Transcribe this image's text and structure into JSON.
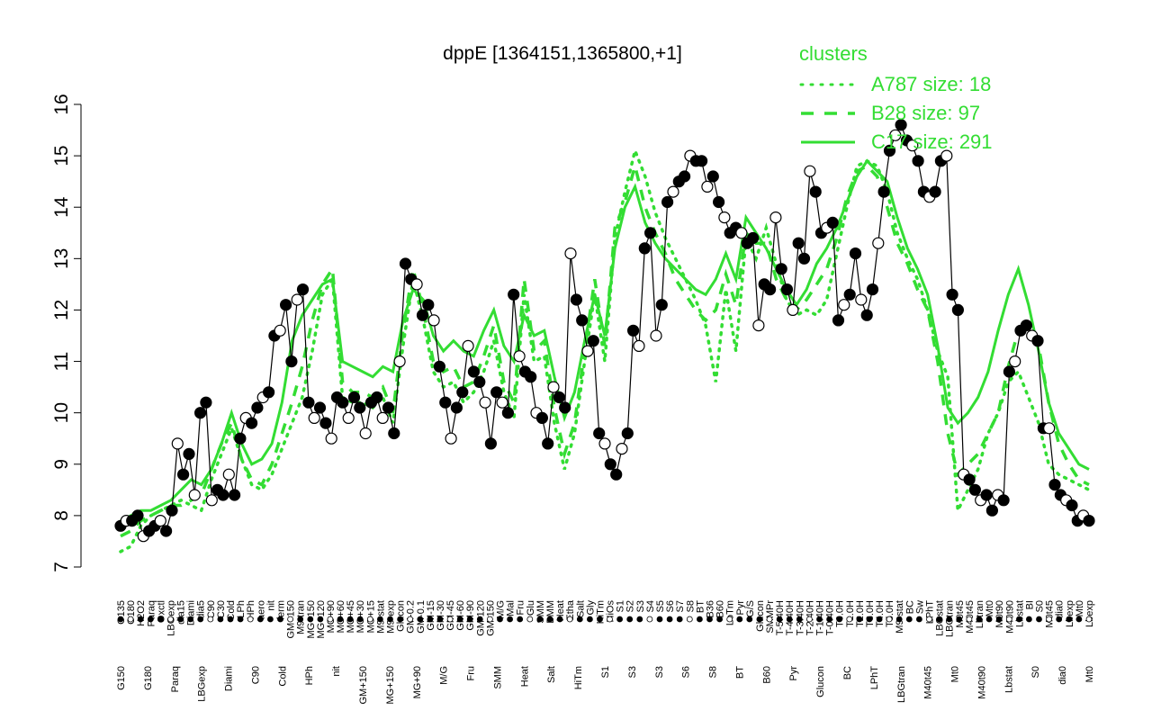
{
  "chart_data": {
    "type": "line",
    "title": "dppE [1364151,1365800,+1]",
    "xlabel": "",
    "ylabel": "",
    "ylim": [
      7,
      16
    ],
    "yticks": [
      7,
      8,
      9,
      10,
      11,
      12,
      13,
      14,
      15,
      16
    ],
    "legend": {
      "title": "clusters",
      "placement": "top-right",
      "entries": [
        "A787 size: 18",
        "B28 size: 97",
        "C17 size: 291"
      ],
      "line_styles": [
        "dotted",
        "dashed",
        "solid"
      ]
    },
    "x_tick_labels_top": [
      "G135",
      "G180",
      "H2O2",
      "Paraq",
      "Oxctl",
      "LBGexp",
      "dia15",
      "Diami",
      "dia5",
      "C90",
      "C30",
      "Cold",
      "LPh",
      "HPh",
      "aero",
      "nit",
      "ferm",
      "GM+150",
      "M9-tran",
      "MG+150",
      "MG+120",
      "MG+90",
      "MG+60",
      "MG+45",
      "MG+30",
      "MG+15",
      "M9-stat",
      "M9-exp",
      "Glucon",
      "GM-0.2",
      "GM-0.1",
      "GM-15",
      "GM-30",
      "GM-45",
      "GM-60",
      "GM-90",
      "GM-120",
      "GM-150",
      "M/G",
      "Mal",
      "Fru",
      "Glu",
      "SMM",
      "BMM",
      "Heat",
      "Etha",
      "Salt",
      "Gly",
      "HiTm",
      "HiOs",
      "S1",
      "S2",
      "S3",
      "S4",
      "S5",
      "S6",
      "S7",
      "S8",
      "BT",
      "B36",
      "B60",
      "LoTm",
      "Pyr",
      "G/S",
      "Glucon",
      "SMMPr",
      "T-5.40H",
      "T-4.40H",
      "T-3.40H",
      "T-2.40H",
      "T-1.40H",
      "T-0.40H",
      "T0.0H",
      "T1.0H",
      "T2.0H",
      "T3.0H",
      "T4.0H",
      "T5.0H",
      "M9-stat",
      "BC",
      "Sw",
      "LPhT",
      "LBGstat",
      "LBGtran",
      "M0t45",
      "M40t45",
      "Lbtran",
      "Mt0",
      "M0t90",
      "M40t90",
      "Lbstat",
      "BI",
      "S0",
      "M0t45",
      "dia0",
      "Lbexp",
      "Mt0",
      "Lbexp"
    ],
    "x_tick_labels_bottom": [
      "G150",
      "G180",
      "Paraq",
      "LBGexp",
      "Diami",
      "C90",
      "Cold",
      "HPh",
      "nit",
      "GM+150",
      "MG+150",
      "MG+90",
      "M/G",
      "Fru",
      "SMM",
      "Heat",
      "Salt",
      "HiTm",
      "S1",
      "S3",
      "S3",
      "S6",
      "S8",
      "BT",
      "B60",
      "Pyr",
      "Glucon",
      "BC",
      "LPhT",
      "LBGtran",
      "M40t45",
      "Mt0",
      "M40t90",
      "Lbstat",
      "S0",
      "dia0",
      "Mt0"
    ],
    "series": [
      {
        "style": "dotted",
        "values": [
          7.3,
          7.4,
          7.8,
          8.0,
          8.1,
          8.2,
          8.3,
          8.2,
          8.1,
          8.7,
          9.2,
          9.7,
          9.1,
          8.6,
          8.5,
          8.8,
          9.3,
          9.8,
          10.3,
          11.2,
          12.3,
          12.6,
          10.3,
          10.2,
          10.2,
          10.1,
          10.3,
          9.8,
          11.3,
          12.6,
          11.8,
          10.8,
          10.5,
          10.6,
          10.2,
          10.4,
          10.8,
          11.4,
          10.4,
          9.9,
          12.3,
          11.0,
          11.1,
          9.8,
          8.9,
          9.6,
          11.0,
          12.3,
          11.0,
          13.4,
          14.3,
          15.1,
          14.6,
          13.9,
          13.4,
          13.0,
          12.6,
          12.2,
          11.7,
          10.6,
          12.4,
          11.2,
          13.4,
          13.0,
          13.6,
          12.9,
          12.2,
          11.9,
          12.0,
          11.9,
          12.2,
          13.1,
          14.0,
          14.8,
          14.9,
          14.8,
          14.3,
          13.5,
          13.0,
          12.6,
          12.0,
          11.2,
          10.7,
          8.1,
          8.5,
          8.9,
          9.6,
          10.0,
          10.6,
          10.8,
          10.3,
          9.8,
          9.0,
          8.8,
          8.7,
          8.6,
          8.5
        ]
      },
      {
        "style": "dashed",
        "values": [
          7.6,
          7.7,
          7.9,
          8.0,
          8.1,
          8.2,
          8.2,
          8.3,
          8.4,
          8.9,
          9.4,
          9.8,
          9.1,
          8.7,
          8.6,
          9.0,
          9.6,
          10.2,
          10.9,
          11.8,
          12.5,
          12.8,
          10.6,
          10.4,
          10.4,
          10.3,
          10.5,
          10.0,
          11.6,
          12.8,
          12.0,
          11.0,
          10.8,
          10.9,
          10.5,
          10.6,
          11.1,
          11.7,
          10.6,
          10.2,
          12.6,
          11.2,
          11.4,
          10.1,
          9.2,
          9.8,
          11.2,
          12.6,
          11.3,
          13.6,
          14.1,
          14.8,
          14.0,
          13.5,
          13.1,
          12.6,
          12.3,
          12.0,
          11.8,
          12.0,
          12.7,
          12.1,
          13.5,
          13.3,
          13.3,
          12.6,
          12.2,
          12.0,
          12.2,
          12.5,
          12.8,
          13.4,
          14.2,
          14.7,
          14.8,
          14.6,
          14.0,
          13.3,
          12.9,
          12.4,
          12.0,
          11.0,
          9.6,
          8.8,
          9.0,
          9.2,
          9.6,
          10.0,
          10.9,
          11.6,
          11.6,
          11.3,
          10.2,
          9.4,
          9.0,
          8.7,
          8.6
        ]
      },
      {
        "style": "solid",
        "values": [
          7.9,
          8.0,
          8.1,
          8.1,
          8.2,
          8.3,
          8.5,
          8.7,
          8.6,
          8.9,
          9.4,
          10.0,
          9.4,
          9.0,
          9.1,
          9.4,
          10.2,
          11.4,
          11.9,
          12.2,
          12.5,
          12.6,
          11.0,
          10.9,
          10.8,
          10.7,
          10.9,
          10.8,
          11.8,
          12.4,
          12.2,
          11.5,
          11.2,
          11.4,
          11.2,
          11.1,
          11.6,
          12.0,
          11.3,
          11.0,
          11.9,
          11.5,
          11.6,
          10.7,
          9.9,
          10.4,
          11.4,
          12.3,
          11.5,
          13.2,
          14.0,
          14.4,
          13.7,
          13.3,
          13.0,
          12.8,
          12.6,
          12.4,
          12.3,
          12.6,
          13.1,
          12.6,
          13.8,
          13.5,
          13.2,
          12.8,
          12.4,
          12.1,
          12.4,
          12.9,
          13.2,
          13.6,
          14.1,
          14.6,
          14.9,
          14.7,
          14.5,
          13.8,
          13.2,
          12.8,
          12.3,
          11.3,
          10.1,
          9.8,
          10.0,
          10.3,
          10.8,
          11.6,
          12.3,
          12.8,
          12.1,
          11.2,
          10.2,
          9.6,
          9.3,
          9.0,
          8.9
        ]
      },
      {
        "style": "points",
        "values": [
          7.8,
          7.9,
          7.9,
          8.0,
          7.6,
          7.7,
          7.8,
          7.9,
          7.7,
          8.1,
          9.4,
          8.8,
          9.2,
          8.4,
          10.0,
          10.2,
          8.3,
          8.5,
          8.4,
          8.8,
          8.4,
          9.5,
          9.9,
          9.8,
          10.1,
          10.3,
          10.4,
          11.5,
          11.6,
          12.1,
          11.0,
          12.2,
          12.4,
          10.2,
          9.9,
          10.1,
          9.8,
          9.5,
          10.3,
          10.2,
          9.9,
          10.3,
          10.1,
          9.6,
          10.2,
          10.3,
          9.9,
          10.1,
          9.6,
          11.0,
          12.9,
          12.6,
          12.5,
          11.9,
          12.1,
          11.8,
          10.9,
          10.2,
          9.5,
          10.1,
          10.4,
          11.3,
          10.8,
          10.6,
          10.2,
          9.4,
          10.4,
          10.2,
          10.0,
          12.3,
          11.1,
          10.8,
          10.7,
          10.0,
          9.9,
          9.4,
          10.5,
          10.3,
          10.1,
          13.1,
          12.2,
          11.8,
          11.2,
          11.4,
          9.6,
          9.4,
          9.0,
          8.8,
          9.3,
          9.6,
          11.6,
          11.3,
          13.2,
          13.5,
          11.5,
          12.1,
          14.1,
          14.3,
          14.5,
          14.6,
          15.0,
          14.9,
          14.9,
          14.4,
          14.6,
          14.1,
          13.8,
          13.5,
          13.6,
          13.5,
          13.3,
          13.4,
          11.7,
          12.5,
          12.4,
          13.8,
          12.8,
          12.4,
          12.0,
          13.3,
          13.0,
          14.7,
          14.3,
          13.5,
          13.6,
          13.7,
          11.8,
          12.1,
          12.3,
          13.1,
          12.2,
          11.9,
          12.4,
          13.3,
          14.3,
          15.1,
          15.4,
          15.6,
          15.3,
          15.2,
          14.9,
          14.3,
          14.2,
          14.3,
          14.9,
          15.0,
          12.3,
          12.0,
          8.8,
          8.7,
          8.5,
          8.3,
          8.4,
          8.1,
          8.4,
          8.3,
          10.8,
          11.0,
          11.6,
          11.7,
          11.5,
          11.4,
          9.7,
          9.7,
          8.6,
          8.4,
          8.3,
          8.2,
          7.9,
          8.0,
          7.9
        ]
      }
    ]
  }
}
